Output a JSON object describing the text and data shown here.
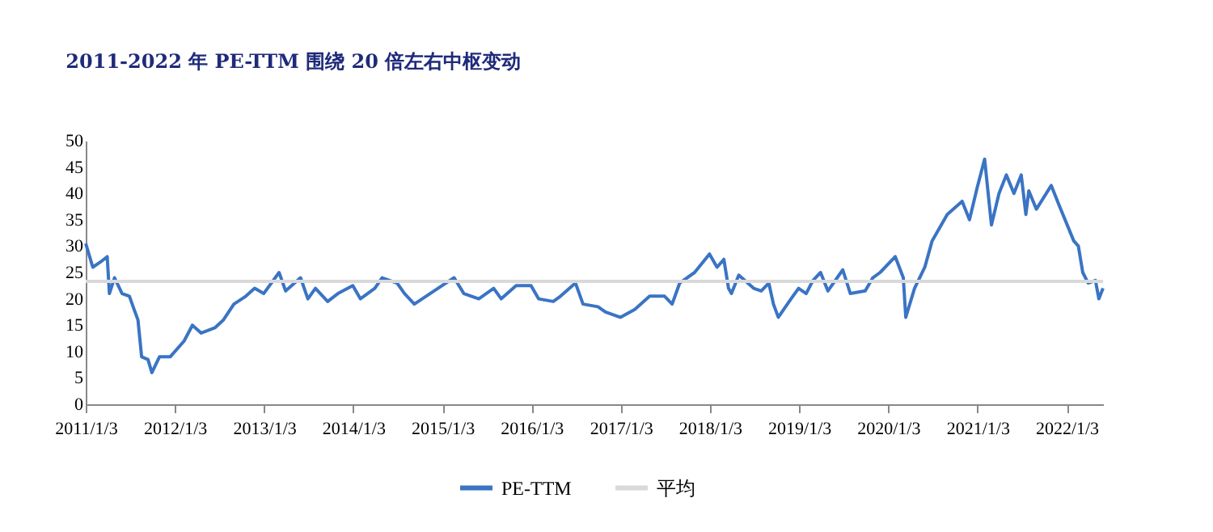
{
  "chart_data": {
    "type": "line",
    "title": "2011-2022 年 PE-TTM 围绕 20 倍左右中枢变动",
    "x": [
      "2011-01-03",
      "2011-02-01",
      "2011-03-05",
      "2011-04-01",
      "2011-04-10",
      "2011-05-01",
      "2011-06-01",
      "2011-07-01",
      "2011-07-20",
      "2011-08-05",
      "2011-08-20",
      "2011-09-15",
      "2011-10-01",
      "2011-11-01",
      "2011-12-15",
      "2012-02-10",
      "2012-03-15",
      "2012-04-20",
      "2012-06-15",
      "2012-07-20",
      "2012-09-01",
      "2012-10-20",
      "2012-11-25",
      "2013-01-01",
      "2013-03-05",
      "2013-04-01",
      "2013-06-01",
      "2013-07-01",
      "2013-08-01",
      "2013-09-20",
      "2013-11-01",
      "2014-01-01",
      "2014-02-01",
      "2014-04-01",
      "2014-05-01",
      "2014-07-01",
      "2014-08-01",
      "2014-09-10",
      "2015-01-01",
      "2015-02-20",
      "2015-04-01",
      "2015-06-01",
      "2015-08-01",
      "2015-09-01",
      "2015-11-01",
      "2016-01-01",
      "2016-02-01",
      "2016-04-01",
      "2016-05-01",
      "2016-07-01",
      "2016-08-01",
      "2016-10-01",
      "2016-11-01",
      "2017-01-01",
      "2017-03-01",
      "2017-05-01",
      "2017-07-01",
      "2017-08-01",
      "2017-09-01",
      "2017-11-01",
      "2018-01-01",
      "2018-02-01",
      "2018-03-01",
      "2018-03-20",
      "2018-04-01",
      "2018-05-01",
      "2018-07-01",
      "2018-08-01",
      "2018-09-01",
      "2018-09-20",
      "2018-10-10",
      "2018-12-01",
      "2019-01-01",
      "2019-02-01",
      "2019-03-01",
      "2019-04-01",
      "2019-05-01",
      "2019-07-01",
      "2019-08-01",
      "2019-10-01",
      "2019-11-01",
      "2019-12-01",
      "2020-02-01",
      "2020-03-05",
      "2020-03-15",
      "2020-04-20",
      "2020-06-01",
      "2020-07-01",
      "2020-09-01",
      "2020-11-01",
      "2020-12-01",
      "2021-01-01",
      "2021-02-01",
      "2021-03-01",
      "2021-04-01",
      "2021-05-01",
      "2021-06-01",
      "2021-07-01",
      "2021-07-20",
      "2021-08-01",
      "2021-09-01",
      "2021-11-01",
      "2021-12-01",
      "2022-02-01",
      "2022-02-20",
      "2022-03-10",
      "2022-04-01",
      "2022-05-01",
      "2022-05-15",
      "2022-06-01"
    ],
    "series": [
      {
        "name": "PE-TTM",
        "color": "#3a74c4",
        "values": [
          30.5,
          26,
          27,
          28,
          21,
          24,
          21,
          20.5,
          18,
          16,
          9,
          8.5,
          6,
          9,
          9,
          12,
          15,
          13.5,
          14.5,
          16,
          19,
          20.5,
          22,
          21,
          25,
          21.5,
          24,
          20,
          22,
          19.5,
          21,
          22.5,
          20,
          22,
          24,
          23,
          21,
          19,
          22.5,
          24,
          21,
          20,
          22,
          20,
          22.5,
          22.5,
          20,
          19.5,
          20.5,
          23,
          19,
          18.5,
          17.5,
          16.5,
          18,
          20.5,
          20.5,
          19,
          23,
          25,
          28.5,
          26,
          27.5,
          22,
          21,
          24.5,
          22,
          21.5,
          23,
          19,
          16.5,
          20,
          22,
          21,
          23.5,
          25,
          21.5,
          25.5,
          21,
          21.5,
          24,
          25,
          28,
          24,
          16.5,
          22,
          26,
          31,
          36,
          38.5,
          35,
          41,
          46.5,
          34,
          40,
          43.5,
          40,
          43.5,
          36,
          40.5,
          37,
          41.5,
          38,
          31,
          30,
          25,
          23,
          23.5,
          20,
          22
        ]
      },
      {
        "name": "平均",
        "color": "#d9d9d9",
        "x": [
          "2011-01-03",
          "2022-06-01"
        ],
        "values": [
          23.3,
          23.3
        ]
      }
    ],
    "xlim": [
      "2011-01-03",
      "2022-06-01"
    ],
    "xticks": [
      {
        "value": "2011-01-03",
        "label": "2011/1/3"
      },
      {
        "value": "2012-01-03",
        "label": "2012/1/3"
      },
      {
        "value": "2013-01-03",
        "label": "2013/1/3"
      },
      {
        "value": "2014-01-03",
        "label": "2014/1/3"
      },
      {
        "value": "2015-01-03",
        "label": "2015/1/3"
      },
      {
        "value": "2016-01-03",
        "label": "2016/1/3"
      },
      {
        "value": "2017-01-03",
        "label": "2017/1/3"
      },
      {
        "value": "2018-01-03",
        "label": "2018/1/3"
      },
      {
        "value": "2019-01-03",
        "label": "2019/1/3"
      },
      {
        "value": "2020-01-03",
        "label": "2020/1/3"
      },
      {
        "value": "2021-01-03",
        "label": "2021/1/3"
      },
      {
        "value": "2022-01-03",
        "label": "2022/1/3"
      }
    ],
    "ylim": [
      0,
      50
    ],
    "yticks": [
      0,
      5,
      10,
      15,
      20,
      25,
      30,
      35,
      40,
      45,
      50
    ],
    "legend": "bottom"
  }
}
